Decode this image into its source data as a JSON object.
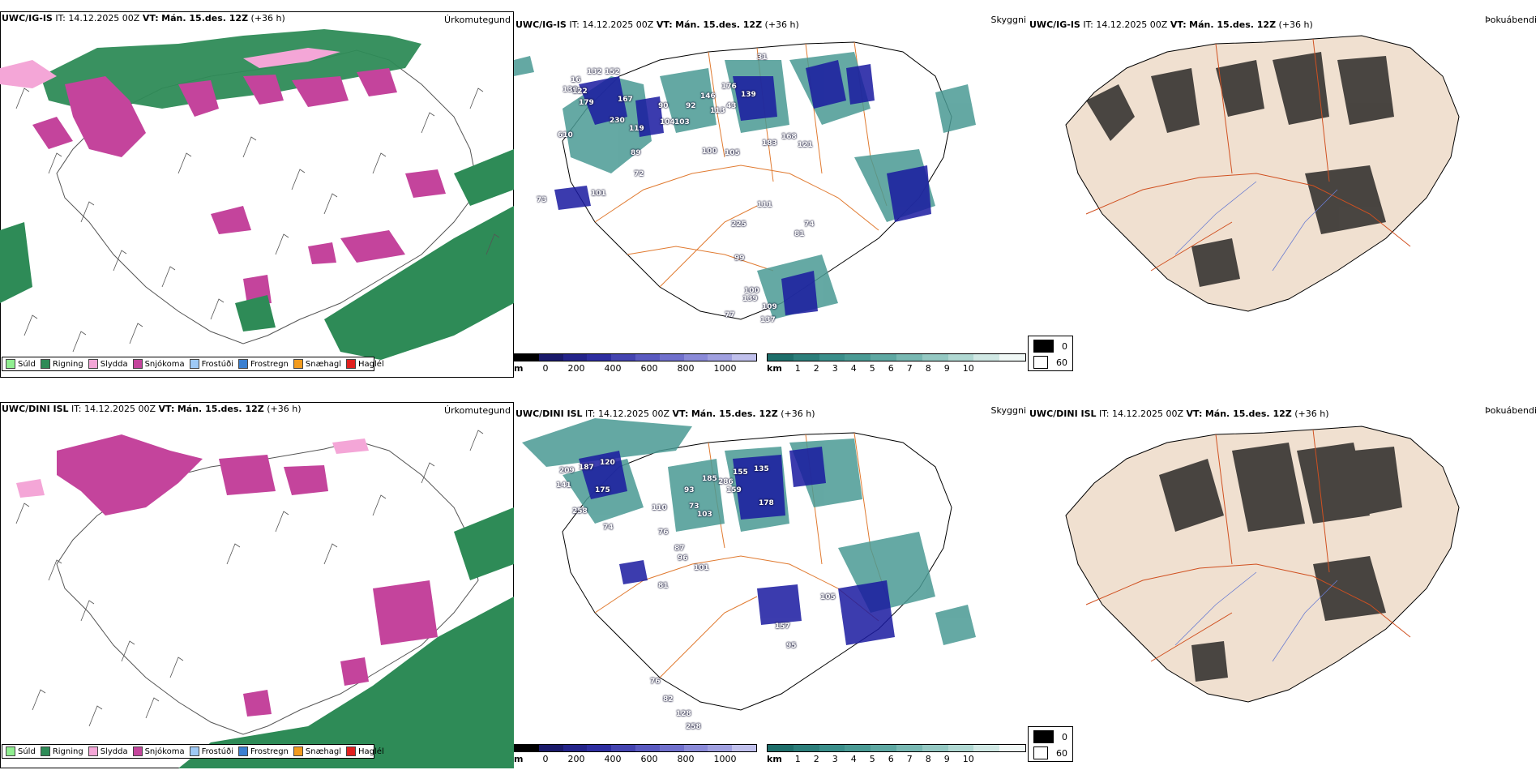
{
  "rows": [
    {
      "model": "UWC/IG-IS",
      "it_label": "IT:",
      "it_value": "14.12.2025 00Z",
      "vt_label": "VT:",
      "vt_value": "Mán. 15.des. 12Z",
      "lead": "(+36 h)",
      "cloud_labels": [
        "132",
        "152",
        "16",
        "130",
        "122",
        "179",
        "167",
        "610",
        "230",
        "119",
        "89",
        "72",
        "101",
        "73",
        "90",
        "104",
        "103",
        "92",
        "146",
        "113",
        "176",
        "43",
        "139",
        "31",
        "100",
        "105",
        "183",
        "168",
        "121",
        "111",
        "74",
        "81",
        "225",
        "100",
        "109",
        "137",
        "139",
        "77",
        "99"
      ],
      "fog_label": "Þokuábendi"
    },
    {
      "model": "UWC/DINI ISL",
      "it_label": "IT:",
      "it_value": "14.12.2025 00Z",
      "vt_label": "VT:",
      "vt_value": "Mán. 15.des. 12Z",
      "lead": "(+36 h)",
      "cloud_labels": [
        "209",
        "187",
        "120",
        "141",
        "175",
        "258",
        "74",
        "93",
        "73",
        "103",
        "185",
        "286",
        "159",
        "155",
        "135",
        "110",
        "76",
        "87",
        "96",
        "101",
        "81",
        "178",
        "105",
        "157",
        "95",
        "76",
        "82",
        "128",
        "258"
      ],
      "fog_label": "Þokuábendi"
    }
  ],
  "precip_title": "Úrkomutegund",
  "cloud_title": "Skyggni",
  "precip_legend": [
    {
      "label": "Súld",
      "color": "#90ee90"
    },
    {
      "label": "Rigning",
      "color": "#2e8b57"
    },
    {
      "label": "Slydda",
      "color": "#f4a6d7"
    },
    {
      "label": "Snjókoma",
      "color": "#c4449c"
    },
    {
      "label": "Frostúði",
      "color": "#9ec9f5"
    },
    {
      "label": "Frostregn",
      "color": "#3a7fd0"
    },
    {
      "label": "Snæhagl",
      "color": "#f29b1d"
    },
    {
      "label": "Haglél",
      "color": "#e0201e"
    }
  ],
  "cloudbase_bar": {
    "unit": "m",
    "ticks": [
      "0",
      "200",
      "400",
      "600",
      "800",
      "1000"
    ]
  },
  "visibility_bar": {
    "unit": "km",
    "ticks": [
      "1",
      "2",
      "3",
      "4",
      "5",
      "6",
      "7",
      "8",
      "9",
      "10"
    ]
  },
  "fog_legend": {
    "low": "0",
    "high": "60"
  },
  "colors": {
    "rain": "#2e8b57",
    "snow": "#c4449c",
    "sleet": "#f4a6d7",
    "cloud_low": "#1a1aa0",
    "cloud_teal": "#4a9a94",
    "roads": "#e07a30",
    "land_fog": "#f0e0d0"
  }
}
